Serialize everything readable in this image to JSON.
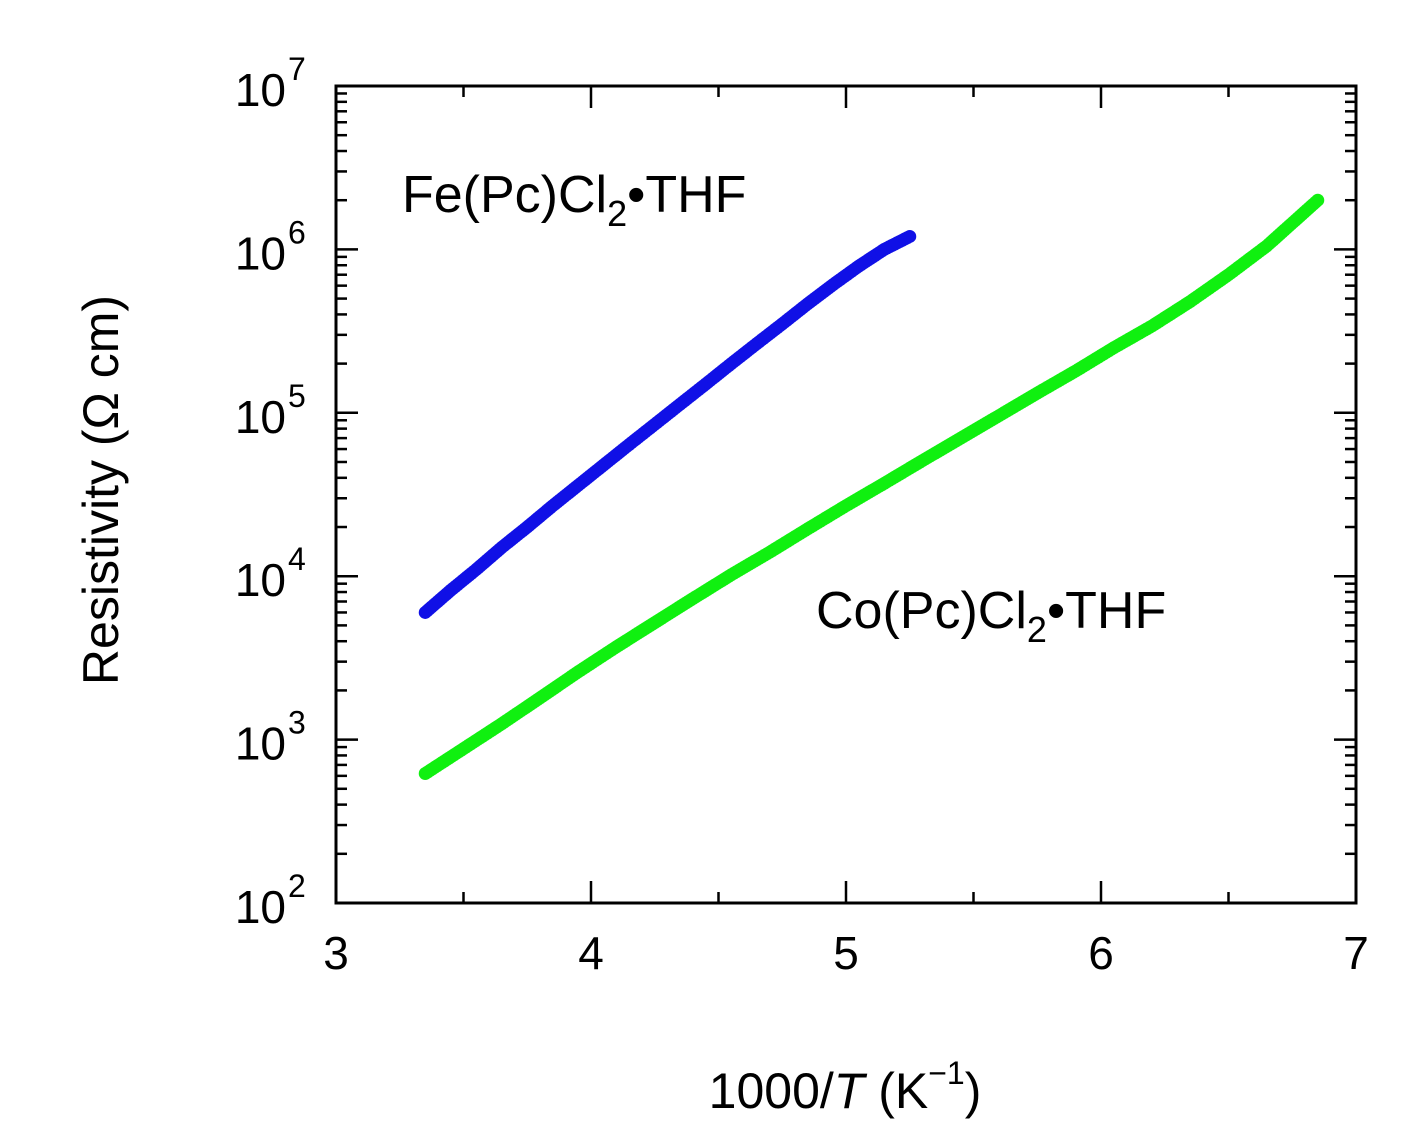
{
  "chart_data": {
    "type": "scatter",
    "title": "",
    "xlabel": {
      "pre": "1000/",
      "italic": "T",
      "post": " (K",
      "sup": "−1",
      "end": ")"
    },
    "ylabel": "Resistivity (Ω cm)",
    "x_range": [
      3,
      7
    ],
    "y_range": [
      100,
      10000000
    ],
    "y_scale": "log",
    "x_ticks": [
      "3",
      "4",
      "5",
      "6",
      "7"
    ],
    "x_tick_values": [
      3,
      4,
      5,
      6,
      7
    ],
    "y_ticks": [
      {
        "base": "10",
        "exp": "2",
        "value": 100
      },
      {
        "base": "10",
        "exp": "3",
        "value": 1000
      },
      {
        "base": "10",
        "exp": "4",
        "value": 10000
      },
      {
        "base": "10",
        "exp": "5",
        "value": 100000
      },
      {
        "base": "10",
        "exp": "6",
        "value": 1000000
      },
      {
        "base": "10",
        "exp": "7",
        "value": 10000000
      }
    ],
    "grid": false,
    "series": [
      {
        "name": "Fe(Pc)Cl₂•THF",
        "label": {
          "pre": "Fe(Pc)Cl",
          "sub": "2",
          "post": "•THF"
        },
        "color": "#1010e6",
        "x": [
          3.35,
          3.45,
          3.55,
          3.65,
          3.75,
          3.85,
          3.95,
          4.05,
          4.15,
          4.25,
          4.35,
          4.45,
          4.55,
          4.65,
          4.75,
          4.85,
          4.95,
          5.05,
          5.15,
          5.25
        ],
        "y": [
          6000,
          8200,
          11000,
          15000,
          20000,
          27000,
          36000,
          48000,
          64000,
          85000,
          113000,
          150000,
          200000,
          265000,
          350000,
          465000,
          610000,
          790000,
          1000000,
          1200000
        ]
      },
      {
        "name": "Co(Pc)Cl₂•THF",
        "label": {
          "pre": "Co(Pc)Cl",
          "sub": "2",
          "post": "•THF"
        },
        "color": "#10f010",
        "x": [
          3.35,
          3.5,
          3.65,
          3.8,
          3.95,
          4.1,
          4.25,
          4.4,
          4.55,
          4.7,
          4.85,
          5.0,
          5.15,
          5.3,
          5.45,
          5.6,
          5.75,
          5.9,
          6.05,
          6.2,
          6.35,
          6.5,
          6.65,
          6.85
        ],
        "y": [
          620,
          880,
          1250,
          1800,
          2600,
          3700,
          5200,
          7300,
          10200,
          14000,
          19500,
          27000,
          37000,
          51000,
          70000,
          96000,
          132000,
          180000,
          250000,
          340000,
          480000,
          700000,
          1050000,
          2000000
        ]
      }
    ]
  }
}
